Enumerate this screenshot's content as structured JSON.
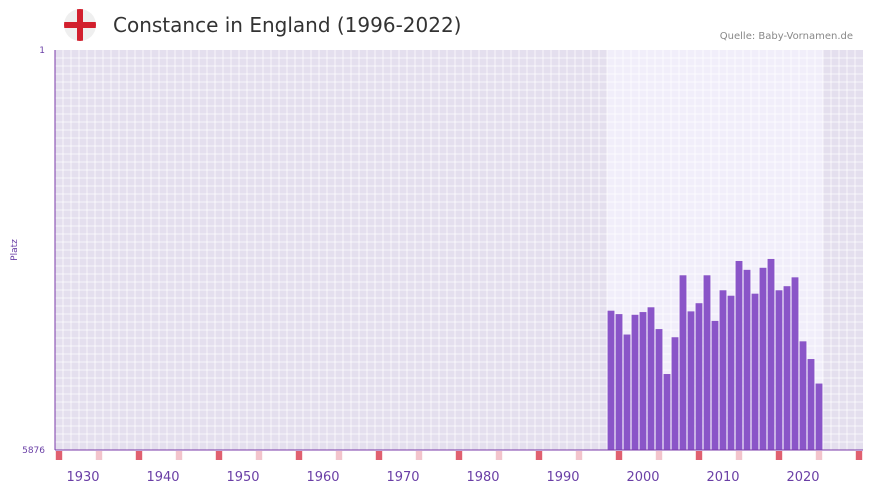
{
  "header": {
    "title": "Constance in England (1996-2022)",
    "source": "Quelle: Baby-Vornamen.de",
    "flag_icon": "england-flag-icon"
  },
  "colors": {
    "bar": "#8a55c8",
    "axis": "#7a3aa8",
    "tick_text": "#6a3fa6",
    "plot_bg": "#e4dfee",
    "highlight_bg": "#f1eefa",
    "marker_strong": "#e06070",
    "marker_light": "#f3c4cc"
  },
  "chart_data": {
    "type": "bar",
    "title": "Constance in England (1996-2022)",
    "xlabel": "",
    "ylabel": "Platz",
    "y_inverted": true,
    "ylim": [
      1,
      5876
    ],
    "ytick_labels": [
      "1",
      "5876"
    ],
    "xlim": [
      1926.5,
      2027.5
    ],
    "x_ticks": [
      1930,
      1940,
      1950,
      1960,
      1970,
      1980,
      1990,
      2000,
      2010,
      2020
    ],
    "highlight_range": [
      1996,
      2022
    ],
    "x": [
      1996,
      1997,
      1998,
      1999,
      2000,
      2001,
      2002,
      2003,
      2004,
      2005,
      2006,
      2007,
      2008,
      2009,
      2010,
      2011,
      2012,
      2013,
      2014,
      2015,
      2016,
      2017,
      2018,
      2019,
      2020,
      2021,
      2022
    ],
    "values": [
      3830,
      3880,
      4180,
      3890,
      3850,
      3780,
      4100,
      4760,
      4220,
      3310,
      3840,
      3720,
      3310,
      3980,
      3530,
      3610,
      3100,
      3230,
      3580,
      3200,
      3070,
      3530,
      3470,
      3340,
      4280,
      4540,
      4900
    ],
    "marker_years_strong": [
      1927,
      1937,
      1947,
      1957,
      1967,
      1977,
      1987,
      1997,
      2007,
      2017,
      2027
    ],
    "marker_years_light": [
      1932,
      1942,
      1952,
      1962,
      1972,
      1982,
      1992,
      2002,
      2012,
      2022
    ]
  }
}
